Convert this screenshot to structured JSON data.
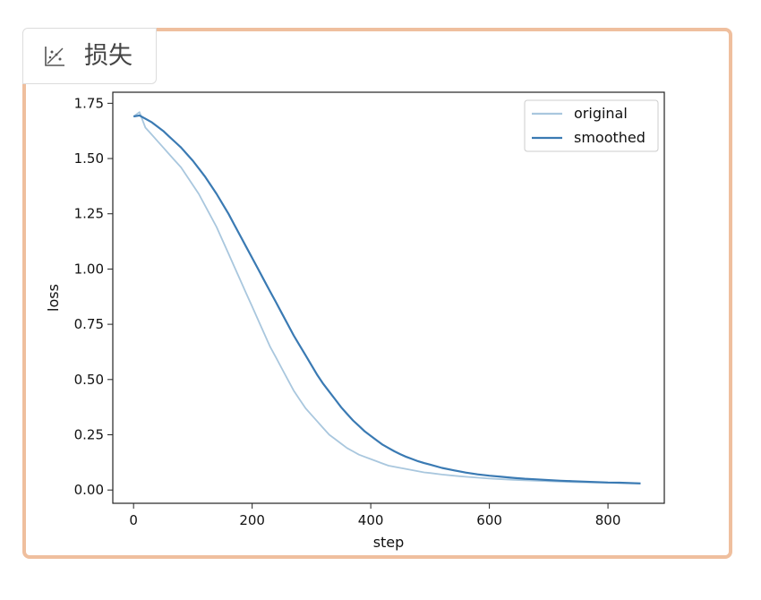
{
  "panel": {
    "title": "损失",
    "icon": "scatter-chart-icon",
    "frame_color": "#efbf9e"
  },
  "chart_data": {
    "type": "line",
    "title": "",
    "xlabel": "step",
    "ylabel": "loss",
    "xlim": [
      -35,
      895
    ],
    "ylim": [
      -0.06,
      1.8
    ],
    "x_ticks": [
      0,
      200,
      400,
      600,
      800
    ],
    "y_ticks": [
      0.0,
      0.25,
      0.5,
      0.75,
      1.0,
      1.25,
      1.5,
      1.75
    ],
    "x_tick_labels": [
      "0",
      "200",
      "400",
      "600",
      "800"
    ],
    "y_tick_labels": [
      "0.00",
      "0.25",
      "0.50",
      "0.75",
      "1.00",
      "1.25",
      "1.50",
      "1.75"
    ],
    "grid": false,
    "legend": "top-right",
    "series": [
      {
        "name": "original",
        "color": "#a9c7de",
        "x": [
          0,
          10,
          20,
          30,
          40,
          50,
          60,
          70,
          80,
          90,
          100,
          110,
          120,
          130,
          140,
          150,
          160,
          170,
          180,
          190,
          200,
          210,
          220,
          230,
          240,
          250,
          260,
          270,
          280,
          290,
          300,
          310,
          320,
          330,
          340,
          350,
          360,
          370,
          380,
          390,
          400,
          410,
          420,
          430,
          440,
          450,
          460,
          470,
          480,
          490,
          500,
          520,
          540,
          560,
          580,
          600,
          620,
          640,
          660,
          680,
          700,
          720,
          740,
          760,
          780,
          800,
          820,
          840,
          855
        ],
        "y": [
          1.69,
          1.71,
          1.64,
          1.61,
          1.58,
          1.55,
          1.52,
          1.49,
          1.46,
          1.42,
          1.38,
          1.34,
          1.29,
          1.24,
          1.19,
          1.13,
          1.07,
          1.01,
          0.95,
          0.89,
          0.83,
          0.77,
          0.71,
          0.65,
          0.6,
          0.55,
          0.5,
          0.45,
          0.41,
          0.37,
          0.34,
          0.31,
          0.28,
          0.25,
          0.23,
          0.21,
          0.19,
          0.175,
          0.16,
          0.15,
          0.14,
          0.13,
          0.12,
          0.11,
          0.105,
          0.1,
          0.095,
          0.09,
          0.085,
          0.08,
          0.077,
          0.07,
          0.065,
          0.06,
          0.056,
          0.052,
          0.049,
          0.046,
          0.044,
          0.042,
          0.04,
          0.038,
          0.036,
          0.035,
          0.034,
          0.033,
          0.032,
          0.031,
          0.03
        ]
      },
      {
        "name": "smoothed",
        "color": "#3a7ab3",
        "x": [
          0,
          10,
          20,
          30,
          40,
          50,
          60,
          70,
          80,
          90,
          100,
          110,
          120,
          130,
          140,
          150,
          160,
          170,
          180,
          190,
          200,
          210,
          220,
          230,
          240,
          250,
          260,
          270,
          280,
          290,
          300,
          310,
          320,
          330,
          340,
          350,
          360,
          370,
          380,
          390,
          400,
          410,
          420,
          430,
          440,
          450,
          460,
          470,
          480,
          490,
          500,
          520,
          540,
          560,
          580,
          600,
          620,
          640,
          660,
          680,
          700,
          720,
          740,
          760,
          780,
          800,
          820,
          840,
          855
        ],
        "y": [
          1.69,
          1.695,
          1.68,
          1.665,
          1.645,
          1.625,
          1.6,
          1.575,
          1.55,
          1.52,
          1.49,
          1.455,
          1.42,
          1.38,
          1.34,
          1.295,
          1.25,
          1.2,
          1.15,
          1.1,
          1.05,
          1.0,
          0.95,
          0.9,
          0.85,
          0.8,
          0.75,
          0.7,
          0.655,
          0.61,
          0.565,
          0.52,
          0.48,
          0.445,
          0.41,
          0.375,
          0.345,
          0.315,
          0.29,
          0.265,
          0.245,
          0.225,
          0.205,
          0.19,
          0.175,
          0.162,
          0.15,
          0.14,
          0.13,
          0.122,
          0.115,
          0.1,
          0.089,
          0.079,
          0.071,
          0.065,
          0.06,
          0.055,
          0.051,
          0.048,
          0.045,
          0.042,
          0.04,
          0.038,
          0.036,
          0.034,
          0.033,
          0.031,
          0.03
        ]
      }
    ]
  }
}
